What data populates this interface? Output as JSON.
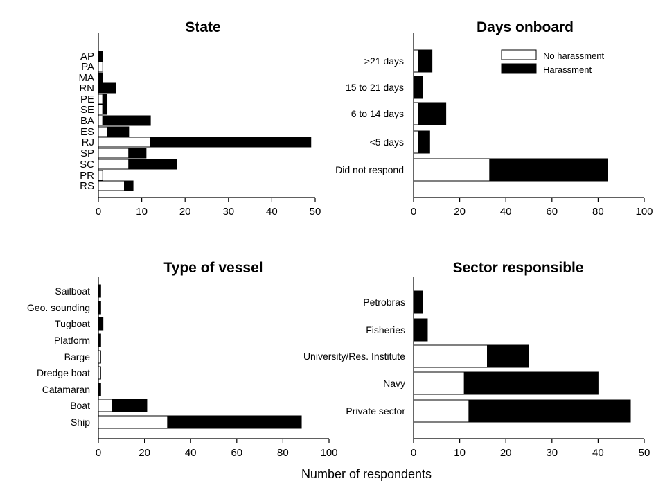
{
  "figure": {
    "shared_xlabel": "Number  of respondents"
  },
  "chart_data": [
    {
      "id": "state",
      "type": "bar",
      "orientation": "horizontal",
      "stacked": true,
      "title": "State",
      "categories": [
        "AP",
        "PA",
        "MA",
        "RN",
        "PE",
        "SE",
        "BA",
        "ES",
        "RJ",
        "SP",
        "SC",
        "PR",
        "RS"
      ],
      "series": [
        {
          "name": "No harassment",
          "color": "#ffffff",
          "values": [
            0,
            1,
            0,
            0,
            1,
            1,
            1,
            2,
            12,
            7,
            7,
            1,
            6
          ]
        },
        {
          "name": "Harassment",
          "color": "#000000",
          "values": [
            1,
            0,
            1,
            4,
            1,
            1,
            11,
            5,
            37,
            4,
            11,
            0,
            2
          ]
        }
      ],
      "xlim": [
        0,
        50
      ],
      "xticks": [
        0,
        10,
        20,
        30,
        40,
        50
      ],
      "legend": "none"
    },
    {
      "id": "days",
      "type": "bar",
      "orientation": "horizontal",
      "stacked": true,
      "title": "Days onboard",
      "categories": [
        ">21 days",
        "15 to 21 days",
        "6 to 14 days",
        "<5 days",
        "Did not respond"
      ],
      "series": [
        {
          "name": "No harassment",
          "color": "#ffffff",
          "values": [
            2,
            0,
            2,
            2,
            33
          ]
        },
        {
          "name": "Harassment",
          "color": "#000000",
          "values": [
            6,
            4,
            12,
            5,
            51
          ]
        }
      ],
      "xlim": [
        0,
        100
      ],
      "xticks": [
        0,
        20,
        40,
        60,
        80,
        100
      ],
      "legend": "top-right",
      "legend_entries": [
        "No harassment",
        "Harassment"
      ]
    },
    {
      "id": "vessel",
      "type": "bar",
      "orientation": "horizontal",
      "stacked": true,
      "title": "Type of vessel",
      "categories": [
        "Sailboat",
        "Geo. sounding",
        "Tugboat",
        "Platform",
        "Barge",
        "Dredge boat",
        "Catamaran",
        "Boat",
        "Ship"
      ],
      "series": [
        {
          "name": "No harassment",
          "color": "#ffffff",
          "values": [
            0,
            0,
            0,
            0,
            1,
            1,
            0,
            6,
            30
          ]
        },
        {
          "name": "Harassment",
          "color": "#000000",
          "values": [
            1,
            1,
            2,
            1,
            0,
            0,
            1,
            15,
            58
          ]
        }
      ],
      "xlim": [
        0,
        100
      ],
      "xticks": [
        0,
        20,
        40,
        60,
        80,
        100
      ],
      "legend": "none"
    },
    {
      "id": "sector",
      "type": "bar",
      "orientation": "horizontal",
      "stacked": true,
      "title": "Sector responsible",
      "categories": [
        "Petrobras",
        "Fisheries",
        "University/Res. Institute",
        "Navy",
        "Private sector"
      ],
      "series": [
        {
          "name": "No harassment",
          "color": "#ffffff",
          "values": [
            0,
            0,
            16,
            11,
            12
          ]
        },
        {
          "name": "Harassment",
          "color": "#000000",
          "values": [
            2,
            3,
            9,
            29,
            35
          ]
        }
      ],
      "xlim": [
        0,
        50
      ],
      "xticks": [
        0,
        10,
        20,
        30,
        40,
        50
      ],
      "legend": "none"
    }
  ]
}
